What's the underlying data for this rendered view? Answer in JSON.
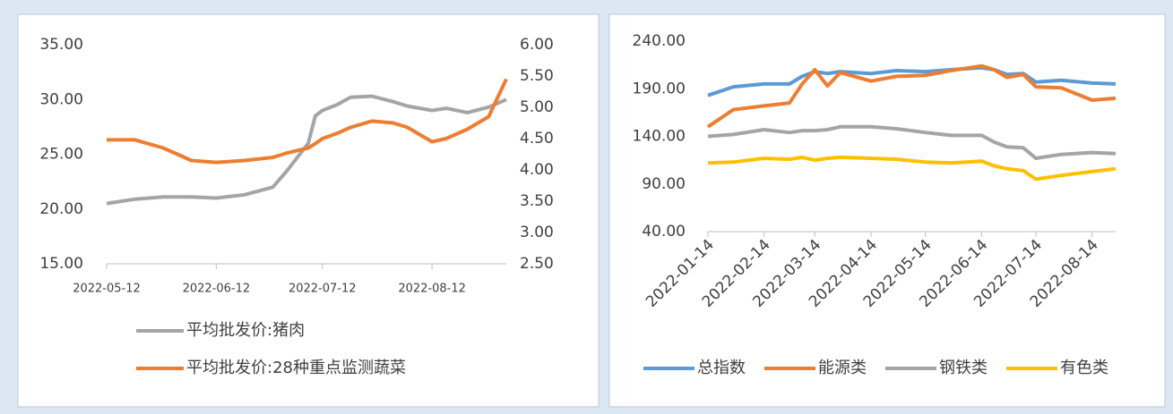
{
  "chart_data": [
    {
      "type": "line",
      "x": [
        "2022-05-12",
        "2022-05-20",
        "2022-05-28",
        "2022-06-05",
        "2022-06-12",
        "2022-06-20",
        "2022-06-28",
        "2022-07-02",
        "2022-07-08",
        "2022-07-10",
        "2022-07-12",
        "2022-07-16",
        "2022-07-20",
        "2022-07-26",
        "2022-08-01",
        "2022-08-05",
        "2022-08-12",
        "2022-08-16",
        "2022-08-22",
        "2022-08-28",
        "2022-09-02"
      ],
      "series": [
        {
          "name": "平均批发价:猪肉",
          "color": "#a5a5a5",
          "values": [
            20.5,
            20.9,
            21.1,
            21.1,
            21.0,
            21.3,
            22.0,
            23.5,
            26.0,
            28.5,
            29.0,
            29.5,
            30.2,
            30.3,
            29.8,
            29.4,
            29.0,
            29.2,
            28.8,
            29.3,
            30.0
          ]
        },
        {
          "name": "平均批发价:28种重点监测蔬菜",
          "color": "#ed7d31",
          "axis": "y2",
          "values": [
            4.48,
            4.48,
            4.35,
            4.15,
            4.12,
            4.15,
            4.2,
            4.27,
            4.35,
            4.42,
            4.5,
            4.58,
            4.68,
            4.78,
            4.75,
            4.68,
            4.45,
            4.5,
            4.65,
            4.85,
            5.45
          ]
        }
      ],
      "xlim": [
        "2022-05-12",
        "2022-09-02"
      ],
      "xticks": [
        "2022-05-12",
        "2022-06-12",
        "2022-07-12",
        "2022-08-12"
      ],
      "ylim": [
        15,
        35
      ],
      "yticks": [
        {
          "value": 15,
          "label": "15.00"
        },
        {
          "value": 20,
          "label": "20.00"
        },
        {
          "value": 25,
          "label": "25.00"
        },
        {
          "value": 30,
          "label": "30.00"
        },
        {
          "value": 35,
          "label": "35.00"
        }
      ],
      "y2lim": [
        2.5,
        6
      ],
      "y2ticks": [
        {
          "value": 2.5,
          "label": "2.50"
        },
        {
          "value": 3,
          "label": "3.00"
        },
        {
          "value": 3.5,
          "label": "3.50"
        },
        {
          "value": 4,
          "label": "4.00"
        },
        {
          "value": 4.5,
          "label": "4.50"
        },
        {
          "value": 5,
          "label": "5.00"
        },
        {
          "value": 5.5,
          "label": "5.50"
        },
        {
          "value": 6,
          "label": "6.00"
        }
      ],
      "grid": false,
      "legend": "bottom"
    },
    {
      "type": "line",
      "x": [
        "2022-01-14",
        "2022-01-28",
        "2022-02-14",
        "2022-02-28",
        "2022-03-07",
        "2022-03-14",
        "2022-03-21",
        "2022-03-28",
        "2022-04-14",
        "2022-04-28",
        "2022-05-14",
        "2022-05-28",
        "2022-06-14",
        "2022-06-21",
        "2022-06-28",
        "2022-07-07",
        "2022-07-14",
        "2022-07-28",
        "2022-08-14",
        "2022-08-27"
      ],
      "series": [
        {
          "name": "总指数",
          "color": "#5b9bd5",
          "values": [
            183,
            192,
            195,
            195,
            203,
            208,
            206,
            208,
            206,
            209,
            208,
            210,
            212,
            210,
            205,
            206,
            197,
            199,
            196,
            195
          ]
        },
        {
          "name": "能源类",
          "color": "#ed7d31",
          "values": [
            150,
            168,
            172,
            175,
            195,
            210,
            193,
            207,
            198,
            203,
            204,
            209,
            214,
            210,
            202,
            205,
            192,
            191,
            178,
            180
          ]
        },
        {
          "name": "钢铁类",
          "color": "#a5a5a5",
          "values": [
            140,
            142,
            147,
            144,
            146,
            146,
            147,
            150,
            150,
            148,
            144,
            141,
            141,
            134,
            129,
            128,
            117,
            121,
            123,
            122
          ]
        },
        {
          "name": "有色类",
          "color": "#ffc000",
          "values": [
            112,
            113,
            117,
            116,
            118,
            115,
            117,
            118,
            117,
            116,
            113,
            112,
            114,
            109,
            106,
            104,
            95,
            99,
            103,
            106
          ]
        }
      ],
      "xlim": [
        "2022-01-14",
        "2022-08-27"
      ],
      "xticks": [
        "2022-01-14",
        "2022-02-14",
        "2022-03-14",
        "2022-04-14",
        "2022-05-14",
        "2022-06-14",
        "2022-07-14",
        "2022-08-14"
      ],
      "ylim": [
        40,
        240
      ],
      "yticks": [
        {
          "value": 40,
          "label": "40.00"
        },
        {
          "value": 90,
          "label": "90.00"
        },
        {
          "value": 140,
          "label": "140.00"
        },
        {
          "value": 190,
          "label": "190.00"
        },
        {
          "value": 240,
          "label": "240.00"
        }
      ],
      "grid": false,
      "legend": "bottom"
    }
  ]
}
